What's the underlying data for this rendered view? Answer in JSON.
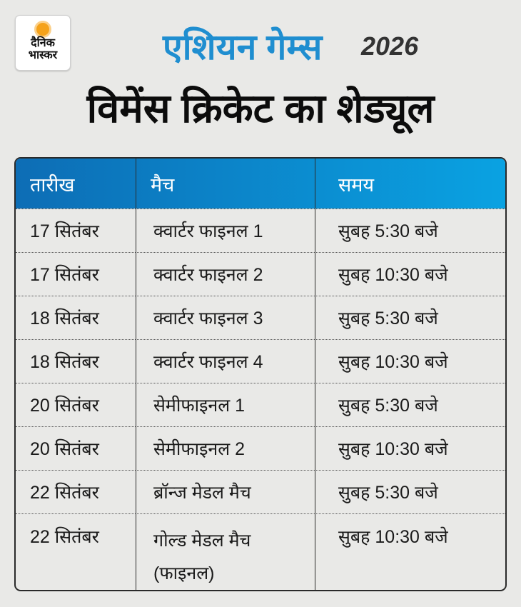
{
  "logo": {
    "line1": "दैनिक",
    "line2": "भास्कर",
    "brand_color": "#f5a21a"
  },
  "header": {
    "title": "एशियन गेम्स",
    "year": "2026",
    "subtitle": "विमेंस क्रिकेट का शेड्यूल",
    "accent": "#1f8ed0"
  },
  "table": {
    "columns": [
      "तारीख",
      "मैच",
      "समय"
    ],
    "rows": [
      {
        "date": "17 सितंबर",
        "match": "क्वार्टर फाइनल 1",
        "time": "सुबह 5:30 बजे"
      },
      {
        "date": "17 सितंबर",
        "match": "क्वार्टर फाइनल 2",
        "time": "सुबह 10:30 बजे"
      },
      {
        "date": "18 सितंबर",
        "match": "क्वार्टर फाइनल 3",
        "time": "सुबह 5:30 बजे"
      },
      {
        "date": "18 सितंबर",
        "match": "क्वार्टर फाइनल 4",
        "time": "सुबह 10:30 बजे"
      },
      {
        "date": "20 सितंबर",
        "match": "सेमीफाइनल 1",
        "time": "सुबह 5:30 बजे"
      },
      {
        "date": "20 सितंबर",
        "match": "सेमीफाइनल 2",
        "time": "सुबह 10:30 बजे"
      },
      {
        "date": "22 सितंबर",
        "match": "ब्रॉन्ज मेडल मैच",
        "time": "सुबह 5:30 बजे"
      },
      {
        "date": "22 सितंबर",
        "match": "गोल्ड मेडल मैच (फाइनल)",
        "time": "सुबह 10:30 बजे"
      }
    ]
  }
}
